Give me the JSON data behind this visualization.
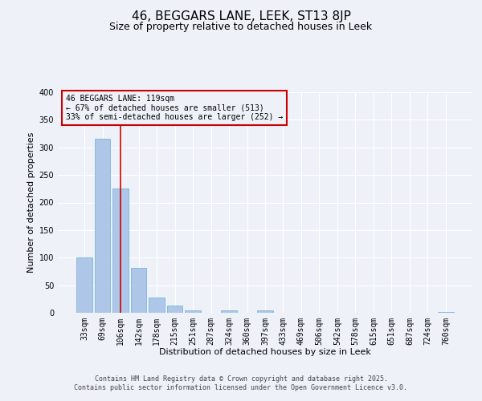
{
  "title": "46, BEGGARS LANE, LEEK, ST13 8JP",
  "subtitle": "Size of property relative to detached houses in Leek",
  "xlabel": "Distribution of detached houses by size in Leek",
  "ylabel": "Number of detached properties",
  "categories": [
    "33sqm",
    "69sqm",
    "106sqm",
    "142sqm",
    "178sqm",
    "215sqm",
    "251sqm",
    "287sqm",
    "324sqm",
    "360sqm",
    "397sqm",
    "433sqm",
    "469sqm",
    "506sqm",
    "542sqm",
    "578sqm",
    "615sqm",
    "651sqm",
    "687sqm",
    "724sqm",
    "760sqm"
  ],
  "bar_values": [
    100,
    316,
    225,
    82,
    27,
    13,
    5,
    0,
    4,
    0,
    5,
    0,
    0,
    0,
    0,
    0,
    0,
    0,
    0,
    0,
    2
  ],
  "bar_color": "#aec6e8",
  "bar_edge_color": "#6aaed6",
  "vline_x": 2.0,
  "vline_color": "#cc0000",
  "ylim": [
    0,
    400
  ],
  "yticks": [
    0,
    50,
    100,
    150,
    200,
    250,
    300,
    350,
    400
  ],
  "annotation_title": "46 BEGGARS LANE: 119sqm",
  "annotation_line1": "← 67% of detached houses are smaller (513)",
  "annotation_line2": "33% of semi-detached houses are larger (252) →",
  "annotation_box_color": "#cc0000",
  "footer_line1": "Contains HM Land Registry data © Crown copyright and database right 2025.",
  "footer_line2": "Contains public sector information licensed under the Open Government Licence v3.0.",
  "background_color": "#eef2f8",
  "title_fontsize": 11,
  "subtitle_fontsize": 9,
  "axis_label_fontsize": 8,
  "tick_fontsize": 7,
  "annotation_fontsize": 7,
  "footer_fontsize": 6
}
